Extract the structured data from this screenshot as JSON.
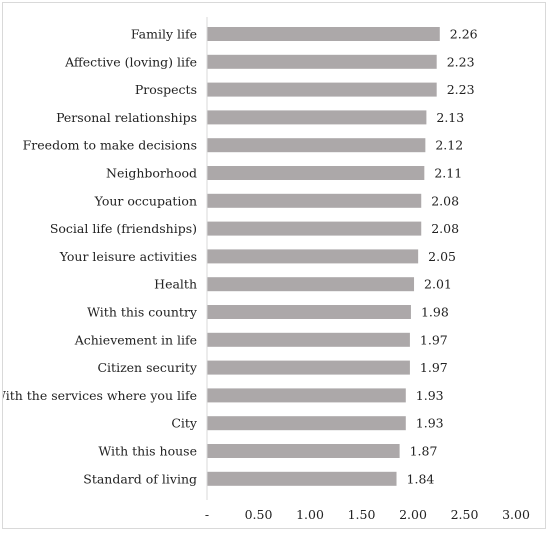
{
  "chart_data": {
    "type": "bar",
    "orientation": "horizontal",
    "categories": [
      "Family life",
      "Affective (loving) life",
      "Prospects",
      "Personal relationships",
      "Freedom to make decisions",
      "Neighborhood",
      "Your occupation",
      "Social life (friendships)",
      "Your leisure activities",
      "Health",
      "With this country",
      "Achievement in life",
      "Citizen security",
      "With the services where you life",
      "City",
      "With this house",
      "Standard of living"
    ],
    "values": [
      2.26,
      2.23,
      2.23,
      2.13,
      2.12,
      2.11,
      2.08,
      2.08,
      2.05,
      2.01,
      1.98,
      1.97,
      1.97,
      1.93,
      1.93,
      1.87,
      1.84
    ],
    "value_labels": [
      "2.26",
      "2.23",
      "2.23",
      "2.13",
      "2.12",
      "2.11",
      "2.08",
      "2.08",
      "2.05",
      "2.01",
      "1.98",
      "1.97",
      "1.97",
      "1.93",
      "1.93",
      "1.87",
      "1.84"
    ],
    "x_ticks": [
      0,
      0.5,
      1.0,
      1.5,
      2.0,
      2.5,
      3.0
    ],
    "x_tick_labels": [
      "-",
      "0.50",
      "1.00",
      "1.50",
      "2.00",
      "2.50",
      "3.00"
    ],
    "xlim": [
      0,
      3.0
    ],
    "title": "",
    "xlabel": "",
    "ylabel": "",
    "grid": false,
    "legend": "none",
    "bar_color": "#aca8a9",
    "axis_color": "#d9d9d9"
  }
}
